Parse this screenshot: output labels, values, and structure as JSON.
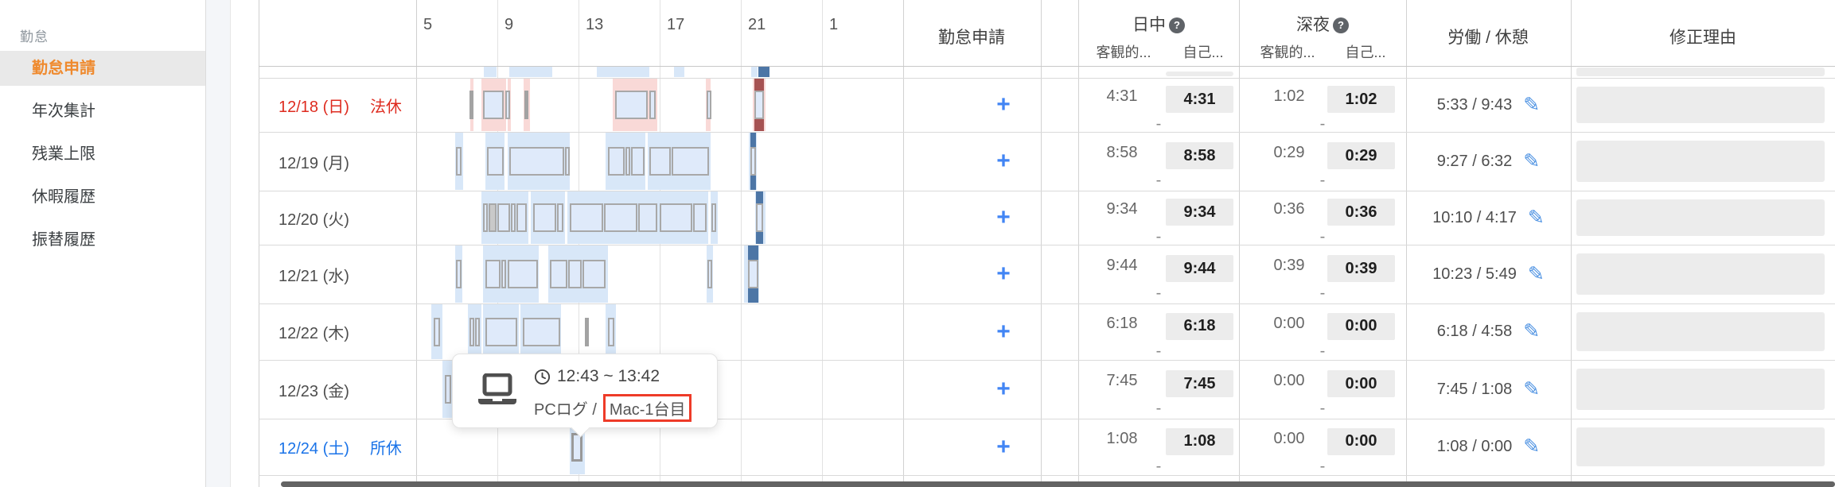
{
  "sidebar": {
    "section": "勤怠",
    "items": [
      {
        "label": "勤怠申請",
        "active": true
      },
      {
        "label": "年次集計",
        "active": false
      },
      {
        "label": "残業上限",
        "active": false
      },
      {
        "label": "休暇履歴",
        "active": false
      },
      {
        "label": "振替履歴",
        "active": false
      }
    ]
  },
  "header": {
    "hours": [
      "5",
      "9",
      "13",
      "17",
      "21",
      "1"
    ],
    "apply": "勤怠申請",
    "daytime": "日中",
    "night": "深夜",
    "objective": "客観的...",
    "self_report": "自己...",
    "work_break": "労働 / 休憩",
    "reason": "修正理由",
    "help_glyph": "?",
    "plus": "+"
  },
  "icons": {
    "pencil": "✎"
  },
  "rows": [
    {
      "date": "12/18 (日)",
      "tag": "法休",
      "color": "red",
      "day_obj": "4:31",
      "day_self": "4:31",
      "day_sub": "-",
      "night_obj": "1:02",
      "night_self": "1:02",
      "night_sub": "-",
      "work_break": "5:33 / 9:43",
      "timeline": {
        "type": "holiday",
        "bands": [
          [
            7.68,
            7.84
          ],
          [
            8.2,
            9.45
          ],
          [
            9.5,
            9.65
          ],
          [
            10.3,
            10.62
          ],
          [
            14.7,
            16.9
          ],
          [
            19.28,
            19.5
          ],
          [
            21.6,
            22.2
          ]
        ],
        "ticks": [
          7.72,
          10.42
        ],
        "boxes": [
          [
            8.28,
            9.33
          ],
          [
            9.38,
            9.58
          ],
          [
            14.8,
            16.42
          ],
          [
            16.48,
            16.8
          ],
          [
            19.32,
            19.46
          ],
          [
            21.65,
            22.15
          ]
        ],
        "late": [
          [
            21.65,
            22.15
          ]
        ]
      }
    },
    {
      "date": "12/19 (月)",
      "tag": "",
      "color": "normal",
      "day_obj": "8:58",
      "day_self": "8:58",
      "day_sub": "-",
      "night_obj": "0:29",
      "night_self": "0:29",
      "night_sub": "-",
      "work_break": "9:27 / 6:32",
      "timeline": {
        "type": "normal",
        "bands": [
          [
            6.9,
            7.3
          ],
          [
            8.4,
            9.35
          ],
          [
            9.5,
            12.55
          ],
          [
            14.35,
            16.3
          ],
          [
            16.4,
            19.5
          ],
          [
            21.4,
            21.8
          ]
        ],
        "ticks": [],
        "boxes": [
          [
            6.97,
            7.24
          ],
          [
            8.5,
            9.3
          ],
          [
            9.6,
            12.3
          ],
          [
            12.34,
            12.5
          ],
          [
            14.45,
            15.28
          ],
          [
            15.33,
            15.55
          ],
          [
            15.6,
            16.25
          ],
          [
            16.5,
            17.55
          ],
          [
            17.6,
            19.42
          ],
          [
            21.45,
            21.75
          ]
        ],
        "late": [
          [
            21.45,
            21.75
          ]
        ]
      }
    },
    {
      "date": "12/20 (火)",
      "tag": "",
      "color": "normal",
      "day_obj": "9:34",
      "day_self": "9:34",
      "day_sub": "-",
      "night_obj": "0:36",
      "night_self": "0:36",
      "night_sub": "-",
      "work_break": "10:10 / 4:17",
      "timeline": {
        "type": "normal",
        "bands": [
          [
            8.2,
            10.55
          ],
          [
            10.65,
            12.35
          ],
          [
            12.45,
            19.4
          ],
          [
            19.5,
            19.85
          ],
          [
            21.7,
            22.2
          ]
        ],
        "ticks": [],
        "boxes": [
          [
            8.3,
            8.55
          ],
          {
            "s": 8.55,
            "e": 8.95,
            "gray": true
          },
          [
            8.98,
            9.62
          ],
          [
            9.66,
            9.9
          ],
          [
            9.94,
            10.45
          ],
          [
            10.75,
            11.9
          ],
          [
            11.94,
            12.25
          ],
          [
            12.55,
            14.2
          ],
          [
            14.25,
            15.9
          ],
          [
            15.95,
            16.88
          ],
          [
            17.0,
            18.62
          ],
          [
            18.66,
            19.3
          ],
          [
            19.55,
            19.78
          ],
          [
            21.75,
            22.12
          ]
        ],
        "late": [
          [
            21.75,
            22.12
          ]
        ]
      }
    },
    {
      "date": "12/21 (水)",
      "tag": "",
      "color": "normal",
      "day_obj": "9:44",
      "day_self": "9:44",
      "day_sub": "-",
      "night_obj": "0:39",
      "night_self": "0:39",
      "night_sub": "-",
      "work_break": "10:23 / 5:49",
      "timeline": {
        "type": "normal",
        "bands": [
          [
            6.9,
            7.28
          ],
          [
            8.3,
            11.05
          ],
          [
            11.5,
            14.45
          ],
          [
            19.3,
            19.62
          ],
          [
            21.15,
            21.9
          ]
        ],
        "ticks": [],
        "boxes": [
          [
            6.96,
            7.22
          ],
          [
            8.4,
            9.14
          ],
          [
            9.18,
            9.44
          ],
          [
            9.5,
            11.0
          ],
          [
            11.6,
            12.45
          ],
          [
            12.5,
            13.14
          ],
          [
            13.2,
            14.35
          ],
          [
            19.35,
            19.56
          ],
          [
            21.35,
            21.85
          ]
        ],
        "late": [
          [
            21.35,
            21.85
          ]
        ]
      }
    },
    {
      "date": "12/22 (木)",
      "tag": "",
      "color": "normal",
      "day_obj": "6:18",
      "day_self": "6:18",
      "day_sub": "-",
      "night_obj": "0:00",
      "night_self": "0:00",
      "night_sub": "-",
      "work_break": "6:18 / 4:58",
      "timeline": {
        "type": "normal",
        "bands": [
          [
            5.75,
            6.3
          ],
          [
            7.55,
            8.2
          ],
          [
            8.3,
            10.05
          ],
          [
            10.15,
            12.15
          ],
          [
            14.35,
            14.85
          ]
        ],
        "ticks": [
          13.4
        ],
        "boxes": [
          [
            5.85,
            6.18
          ],
          [
            7.62,
            7.86
          ],
          [
            7.9,
            8.14
          ],
          [
            8.4,
            10.0
          ],
          [
            10.25,
            12.08
          ],
          [
            14.45,
            14.75
          ]
        ],
        "late": []
      }
    },
    {
      "date": "12/23 (金)",
      "tag": "",
      "color": "normal",
      "day_obj": "7:45",
      "day_self": "7:45",
      "day_sub": "-",
      "night_obj": "0:00",
      "night_self": "0:00",
      "night_sub": "-",
      "work_break": "7:45 / 1:08",
      "timeline": {
        "type": "normal",
        "bands": [
          [
            6.3,
            6.85
          ]
        ],
        "ticks": [],
        "boxes": [
          [
            6.4,
            6.74
          ]
        ],
        "late": []
      }
    },
    {
      "date": "12/24 (土)",
      "tag": "所休",
      "color": "blue",
      "day_obj": "1:08",
      "day_self": "1:08",
      "day_sub": "-",
      "night_obj": "0:00",
      "night_self": "0:00",
      "night_sub": "-",
      "work_break": "1:08 / 0:00",
      "timeline": {
        "type": "normal",
        "bands": [
          [
            12.55,
            13.3
          ]
        ],
        "ticks": [],
        "boxes": [
          {
            "s": 12.65,
            "e": 13.2,
            "hover": true
          }
        ],
        "late": []
      }
    }
  ],
  "strip_row": {
    "bands": [
      [
        8.35,
        8.95
      ],
      [
        9.6,
        11.7
      ],
      [
        13.9,
        16.5
      ],
      [
        17.7,
        18.2
      ],
      [
        21.5,
        21.82
      ]
    ],
    "late": [
      [
        21.86,
        22.4
      ]
    ]
  },
  "tooltip": {
    "time_range": "12:43 ~ 13:42",
    "source": "PCログ /",
    "device": "Mac-1台目"
  },
  "colors": {
    "accent_orange": "#ef8a2e",
    "date_red": "#de2b1f",
    "date_blue": "#1a73e8",
    "plus_blue": "#4285f4",
    "band_blue": "#d8e7f8",
    "band_pink": "#f9d9d7",
    "box_fill": "#dfeafa",
    "box_border": "#a8a8a8",
    "late_night_blue": "#4d76a6",
    "holiday_late_red": "#a65252",
    "self_value_bg": "#ececec"
  }
}
